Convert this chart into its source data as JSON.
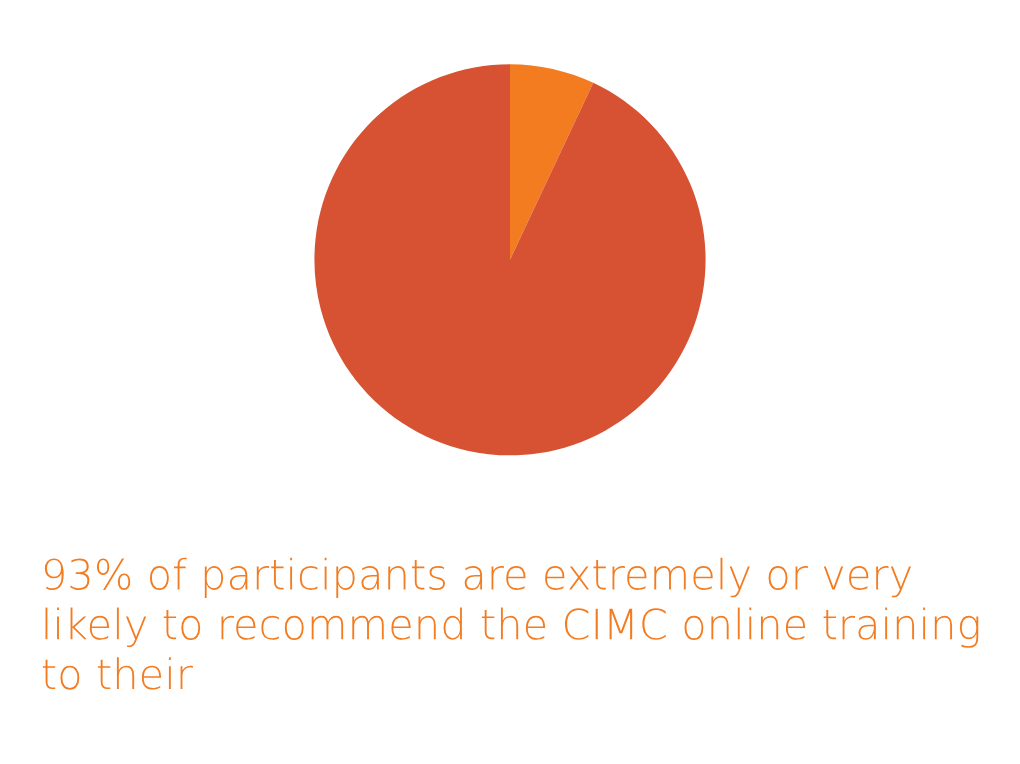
{
  "chart_data": {
    "type": "pie",
    "categories": [
      null,
      null
    ],
    "values": [
      7,
      93
    ],
    "colors": [
      "#f47c20",
      "#d75232"
    ],
    "annotations": [
      "93% of participants are extremely or very likely to recommend the CIMC online training to their"
    ]
  }
}
